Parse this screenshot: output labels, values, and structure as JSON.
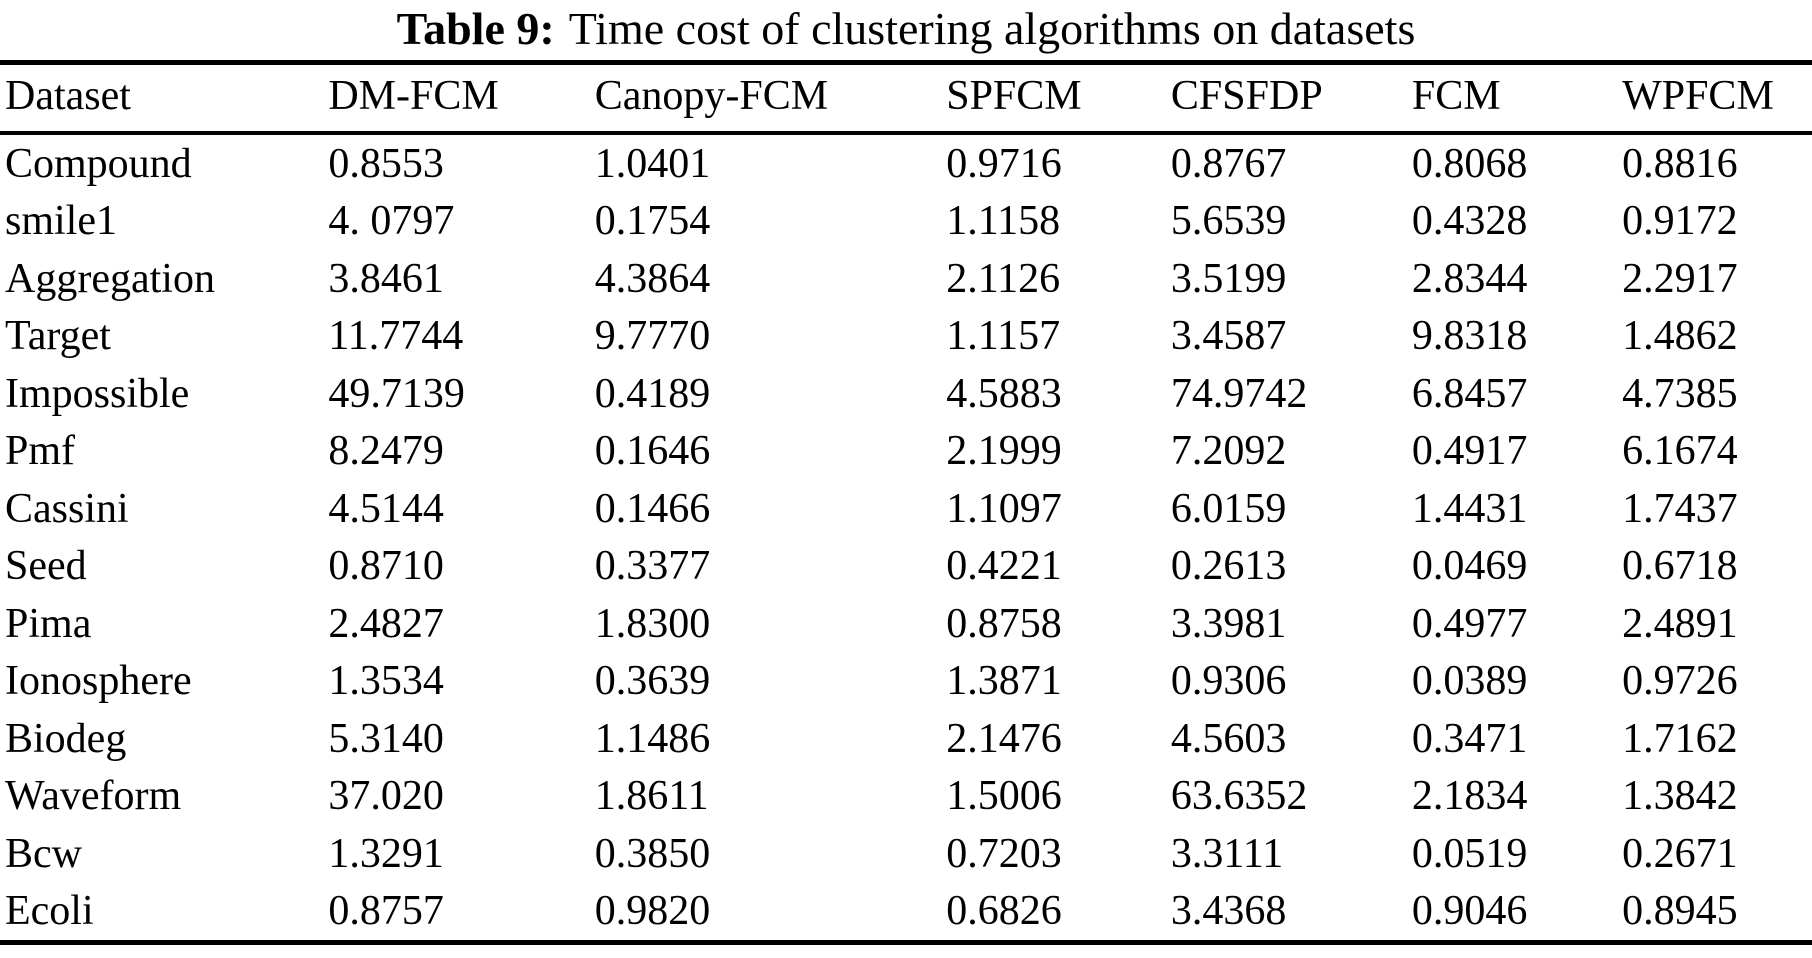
{
  "caption": {
    "label": "Table 9:",
    "text": "Time cost of clustering algorithms on datasets"
  },
  "table": {
    "columns": [
      "Dataset",
      "DM-FCM",
      "Canopy-FCM",
      "SPFCM",
      "CFSFDP",
      "FCM",
      "WPFCM"
    ],
    "rows": [
      [
        "Compound",
        "0.8553",
        "1.0401",
        "0.9716",
        "0.8767",
        "0.8068",
        "0.8816"
      ],
      [
        "smile1",
        "4. 0797",
        "0.1754",
        "1.1158",
        "5.6539",
        "0.4328",
        "0.9172"
      ],
      [
        "Aggregation",
        "3.8461",
        "4.3864",
        "2.1126",
        "3.5199",
        "2.8344",
        "2.2917"
      ],
      [
        "Target",
        "11.7744",
        "9.7770",
        "1.1157",
        "3.4587",
        "9.8318",
        "1.4862"
      ],
      [
        "Impossible",
        "49.7139",
        "0.4189",
        "4.5883",
        "74.9742",
        "6.8457",
        "4.7385"
      ],
      [
        "Pmf",
        "8.2479",
        "0.1646",
        "2.1999",
        "7.2092",
        "0.4917",
        "6.1674"
      ],
      [
        "Cassini",
        "4.5144",
        "0.1466",
        "1.1097",
        "6.0159",
        "1.4431",
        "1.7437"
      ],
      [
        "Seed",
        "0.8710",
        "0.3377",
        "0.4221",
        "0.2613",
        "0.0469",
        "0.6718"
      ],
      [
        "Pima",
        "2.4827",
        "1.8300",
        "0.8758",
        "3.3981",
        "0.4977",
        "2.4891"
      ],
      [
        "Ionosphere",
        "1.3534",
        "0.3639",
        "1.3871",
        "0.9306",
        "0.0389",
        "0.9726"
      ],
      [
        "Biodeg",
        "5.3140",
        "1.1486",
        "2.1476",
        "4.5603",
        "0.3471",
        "1.7162"
      ],
      [
        "Waveform",
        "37.020",
        "1.8611",
        "1.5006",
        "63.6352",
        "2.1834",
        "1.3842"
      ],
      [
        "Bcw",
        "1.3291",
        "0.3850",
        "0.7203",
        "3.3111",
        "0.0519",
        "0.2671"
      ],
      [
        "Ecoli",
        "0.8757",
        "0.9820",
        "0.6826",
        "3.4368",
        "0.9046",
        "0.8945"
      ]
    ]
  },
  "colors": {
    "text": "#000000",
    "background": "#ffffff",
    "rule": "#000000"
  }
}
